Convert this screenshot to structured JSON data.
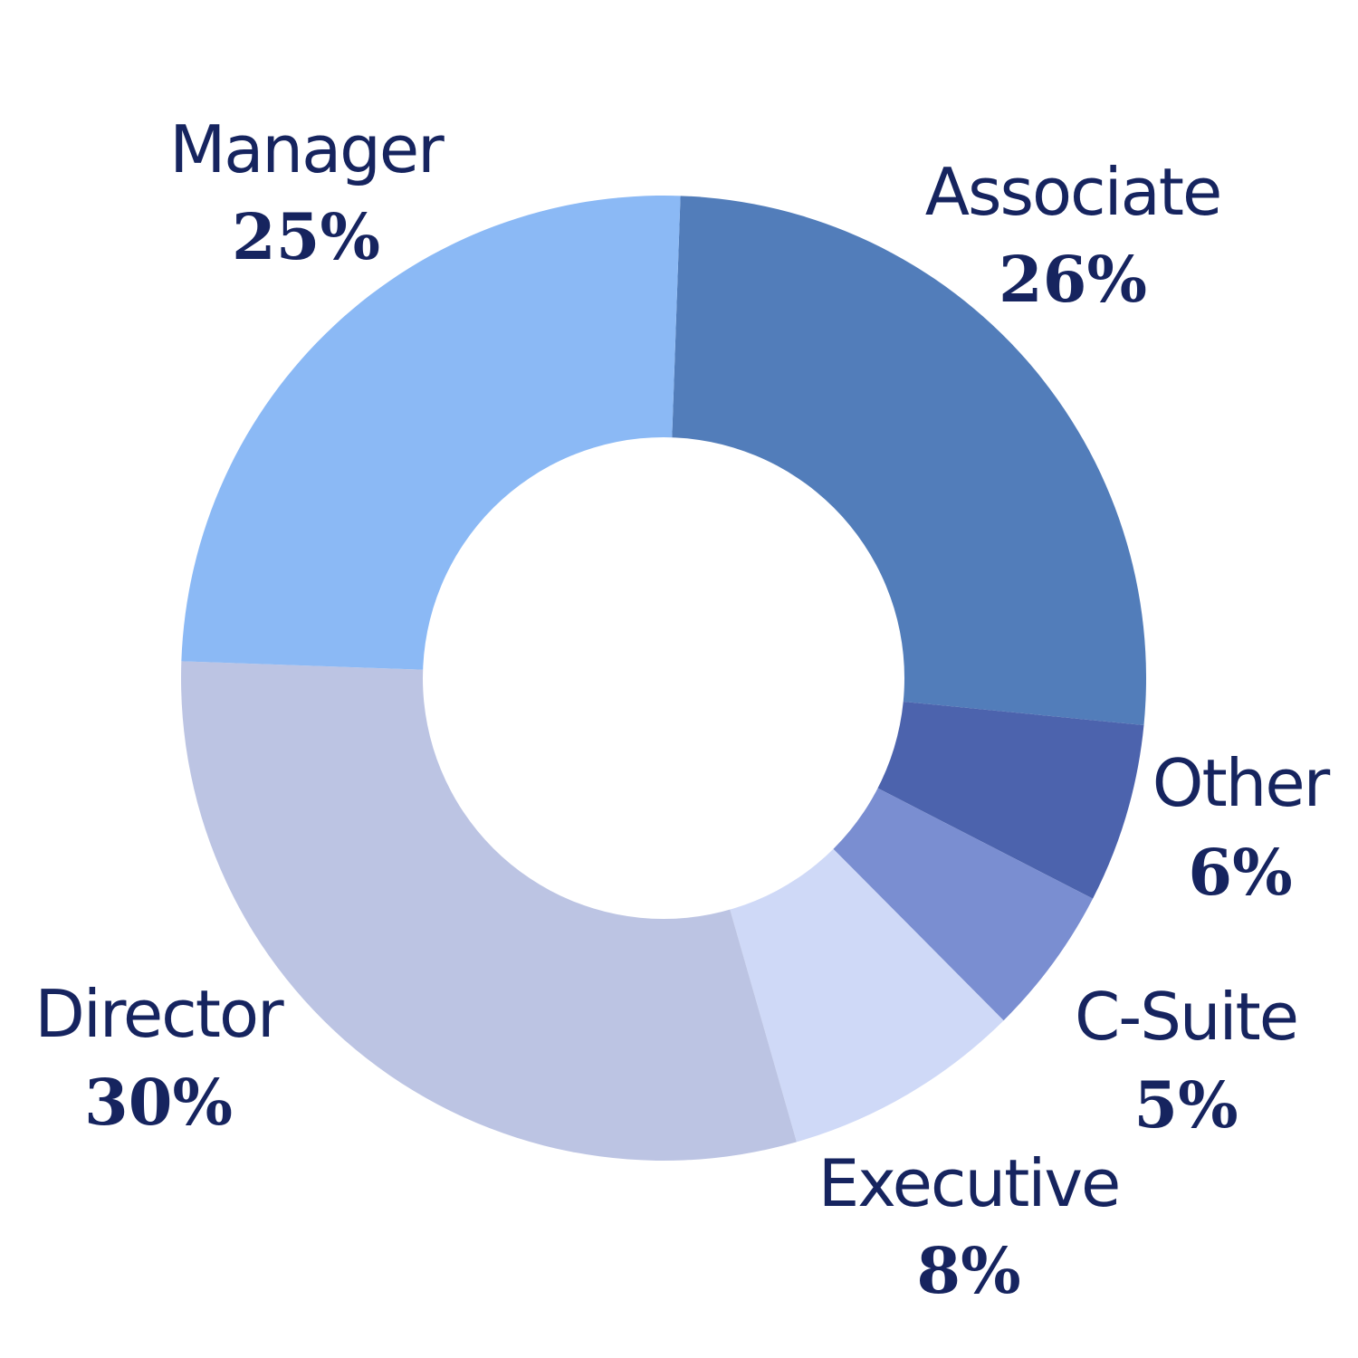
{
  "chart_data": {
    "type": "pie",
    "donut": true,
    "slices": [
      {
        "label": "Associate",
        "value": 26,
        "display": "26%",
        "color": "#527dba"
      },
      {
        "label": "Other",
        "value": 6,
        "display": "6%",
        "color": "#4c63ad"
      },
      {
        "label": "C-Suite",
        "value": 5,
        "display": "5%",
        "color": "#7a8ed1"
      },
      {
        "label": "Executive",
        "value": 8,
        "display": "8%",
        "color": "#cfd9f7"
      },
      {
        "label": "Director",
        "value": 30,
        "display": "30%",
        "color": "#bcc4e3"
      },
      {
        "label": "Manager",
        "value": 25,
        "display": "25%",
        "color": "#8bb9f5"
      }
    ],
    "start_angle_deg": 2,
    "legend": "none",
    "label_color": "#16245f"
  }
}
